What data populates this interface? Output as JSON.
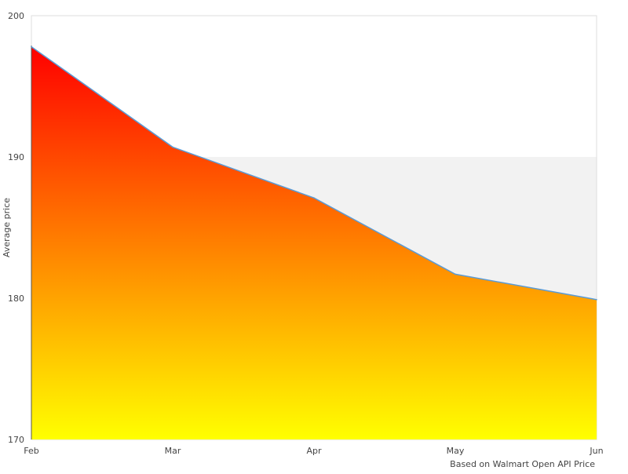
{
  "chart_data": {
    "type": "area",
    "title": "",
    "xlabel": "",
    "ylabel": "Average price",
    "caption": "Based on Walmart Open API Price",
    "categories": [
      "Feb",
      "Mar",
      "Apr",
      "May",
      "Jun"
    ],
    "series": [
      {
        "values": [
          197.8,
          190.7,
          187.1,
          181.7,
          179.9
        ]
      }
    ],
    "ylim": [
      170,
      200
    ],
    "yticks": [
      170,
      180,
      190,
      200
    ],
    "highlight_band": [
      180,
      190
    ],
    "grid": false,
    "legend": "none",
    "colors": {
      "line": "#5b9bd5",
      "fill_top": "#ff0000",
      "fill_bottom": "#ffff00",
      "band": "#f2f2f2",
      "frame": "#dddddd"
    }
  }
}
